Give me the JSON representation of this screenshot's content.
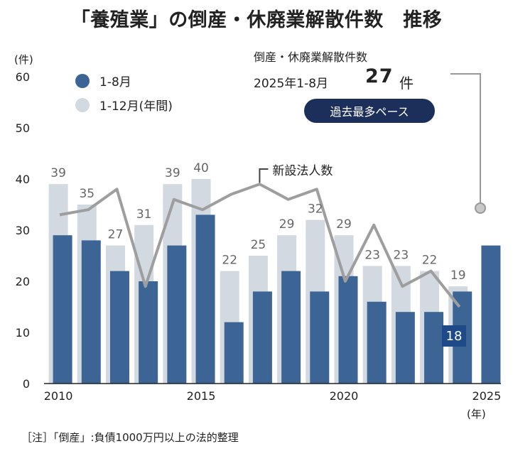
{
  "title": "「養殖業」の倒産・休廃業解散件数　推移",
  "y_unit": "(件)",
  "x_unit": "(年)",
  "legend": {
    "primary": "1-8月",
    "secondary": "1-12月(年間)",
    "colors": {
      "primary": "#3c6595",
      "secondary": "#d3d9e0",
      "line": "#9e9e9e",
      "badge": "#1c2e5a"
    }
  },
  "callout": {
    "label": "倒産・休廃業解散件数",
    "period": "2025年1-8月",
    "value": "27",
    "unit": "件",
    "badge": "過去最多ペース"
  },
  "line_label": "新設法人数",
  "note": "［注］「倒産」:負債1000万円以上の法的整理",
  "chart_data": {
    "type": "bar",
    "categories": [
      "2010",
      "2011",
      "2012",
      "2013",
      "2014",
      "2015",
      "2016",
      "2017",
      "2018",
      "2019",
      "2020",
      "2021",
      "2022",
      "2023",
      "2024",
      "2025"
    ],
    "x_tick_labels": [
      "2010",
      "2015",
      "2020",
      "2025"
    ],
    "y_ticks": [
      "0",
      "10",
      "20",
      "30",
      "40",
      "50",
      "60"
    ],
    "ylim": [
      0,
      60
    ],
    "series": [
      {
        "name": "1-12月(年間)",
        "values": [
          39,
          35,
          27,
          31,
          39,
          40,
          22,
          25,
          29,
          32,
          29,
          23,
          23,
          22,
          19,
          null
        ],
        "labels": [
          "39",
          "35",
          "27",
          "31",
          "39",
          "40",
          "22",
          "25",
          "29",
          "32",
          "29",
          "23",
          "23",
          "22",
          "19",
          ""
        ]
      },
      {
        "name": "1-8月",
        "values": [
          29,
          28,
          22,
          20,
          27,
          33,
          12,
          18,
          22,
          18,
          21,
          16,
          14,
          14,
          18,
          27
        ],
        "highlight_label": "18"
      },
      {
        "name": "新設法人数",
        "type": "line",
        "values": [
          33,
          34,
          38,
          19,
          36,
          34,
          37,
          39,
          36,
          38,
          20,
          31,
          19,
          22,
          15,
          null
        ]
      }
    ]
  }
}
